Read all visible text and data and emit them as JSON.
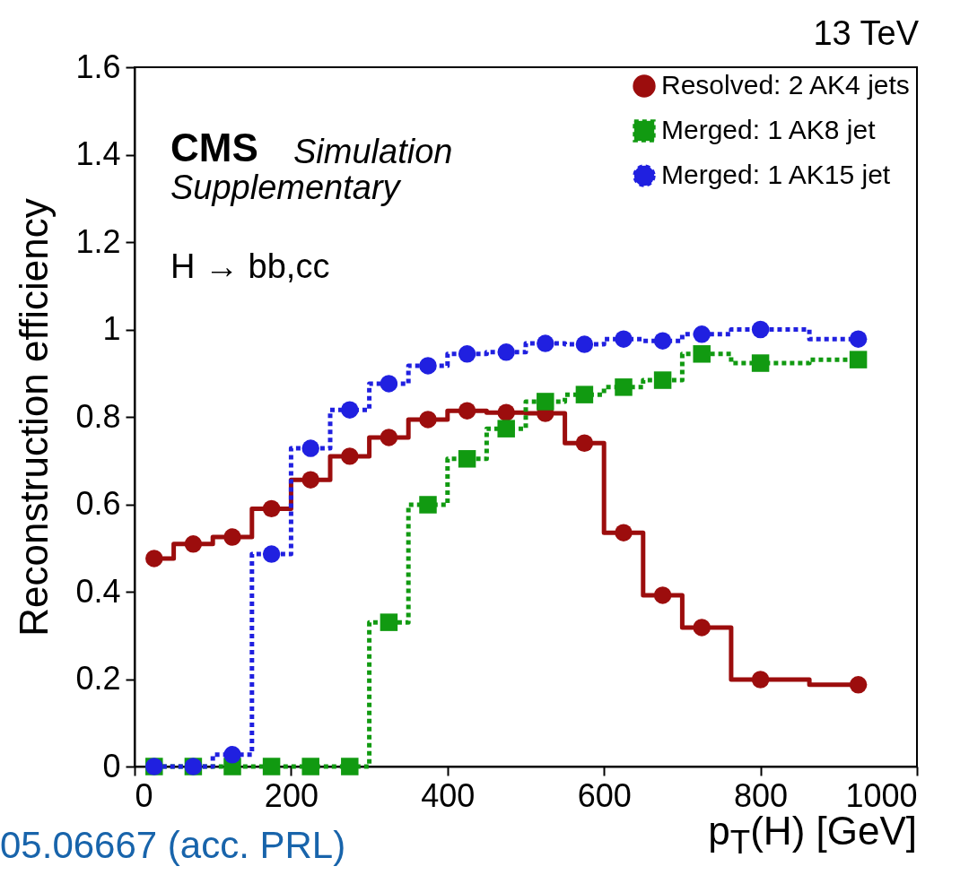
{
  "chart_data": {
    "type": "step",
    "xlabel": "p$_{T}$(H) [GeV]",
    "ylabel": "Reconstruction efficiency",
    "x": [
      25,
      75,
      125,
      175,
      225,
      275,
      325,
      375,
      425,
      475,
      525,
      575,
      625,
      675,
      725,
      800,
      925
    ],
    "series": [
      {
        "name": "Resolved: 2 AK4 jets",
        "color": "#9c0d0d",
        "marker": "circle",
        "line_style": "solid",
        "values": [
          0.476,
          0.509,
          0.525,
          0.59,
          0.656,
          0.71,
          0.753,
          0.794,
          0.814,
          0.81,
          0.808,
          0.74,
          0.535,
          0.392,
          0.318,
          0.199,
          0.187
        ]
      },
      {
        "name": "Merged: 1 AK8 jet",
        "color": "#119a11",
        "marker": "square",
        "line_style": "dotted",
        "values": [
          0,
          0,
          0,
          0,
          0,
          0,
          0.33,
          0.599,
          0.704,
          0.773,
          0.835,
          0.851,
          0.868,
          0.884,
          0.944,
          0.923,
          0.931
        ]
      },
      {
        "name": "Merged: 1 AK15 jet",
        "color": "#2020e0",
        "marker": "circle",
        "line_style": "dotted",
        "values": [
          0,
          0,
          0.027,
          0.486,
          0.728,
          0.816,
          0.876,
          0.917,
          0.944,
          0.948,
          0.968,
          0.966,
          0.978,
          0.974,
          0.989,
          1.0,
          0.978
        ]
      }
    ],
    "xlim": [
      0,
      1000
    ],
    "xticks": [
      0,
      200,
      400,
      600,
      800,
      1000
    ],
    "ylim": [
      0,
      1.6
    ],
    "yticks": [
      0,
      {
        "value": 0.2,
        "label": "0.2"
      },
      {
        "value": 0.4,
        "label": "0.4"
      },
      {
        "value": 0.6,
        "label": "0.6"
      },
      {
        "value": 0.8,
        "label": "0.8"
      },
      1,
      {
        "value": 1.2,
        "label": "1.2"
      },
      {
        "value": 1.4,
        "label": "1.4"
      },
      {
        "value": 1.6,
        "label": "1.6"
      }
    ],
    "grid": false,
    "legend": "top right",
    "annotations": [
      "CMS",
      "Simulation",
      "Supplementary",
      "H → bb,cc",
      "13 TeV",
      "05.06667 (acc. PRL)"
    ]
  }
}
